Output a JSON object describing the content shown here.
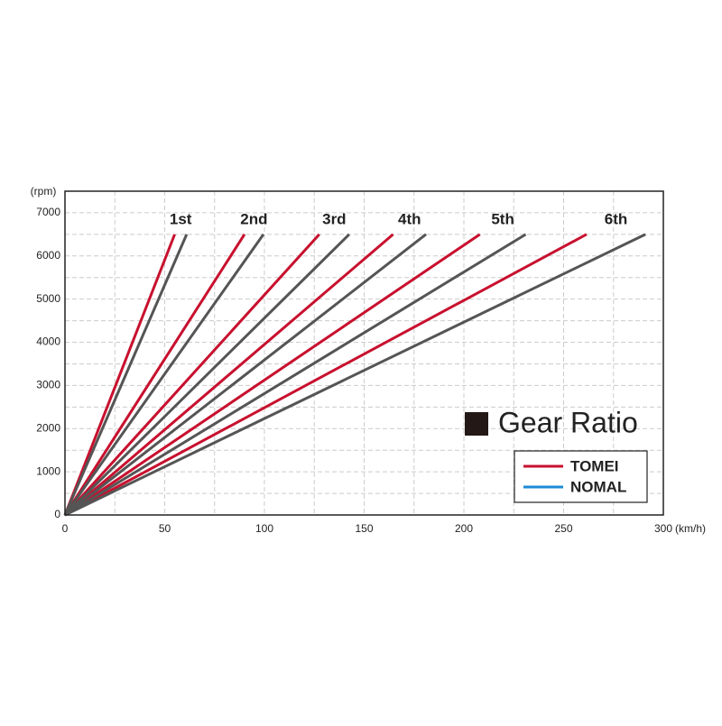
{
  "chart_data": {
    "type": "line",
    "y_label": "(rpm)",
    "x_label": "(km/h)",
    "xlim": [
      0,
      300
    ],
    "xticks": [
      0,
      50,
      100,
      150,
      200,
      250,
      300
    ],
    "ylim": [
      0,
      7500
    ],
    "yticks": [
      0,
      1000,
      2000,
      3000,
      4000,
      5000,
      6000,
      7000
    ],
    "minor_xticks": [
      25,
      75,
      125,
      175,
      225,
      275
    ],
    "minor_yticks": [
      500,
      1500,
      2500,
      3500,
      4500,
      5500,
      6500
    ],
    "grid": true,
    "redline": 6500,
    "categories": [
      "1st",
      "2nd",
      "3rd",
      "4th",
      "5th",
      "6th"
    ],
    "series": [
      {
        "name": "TOMEI",
        "color": "#c8102e",
        "legend_color": "#c8102e",
        "values": [
          55,
          90,
          127.5,
          164.5,
          208,
          261.5
        ]
      },
      {
        "name": "NOMAL",
        "color": "#555555",
        "legend_color": "#1e8ad6",
        "values": [
          61,
          99.5,
          142.5,
          181,
          231,
          291
        ]
      }
    ],
    "legend_title": "Gear Ratio"
  }
}
